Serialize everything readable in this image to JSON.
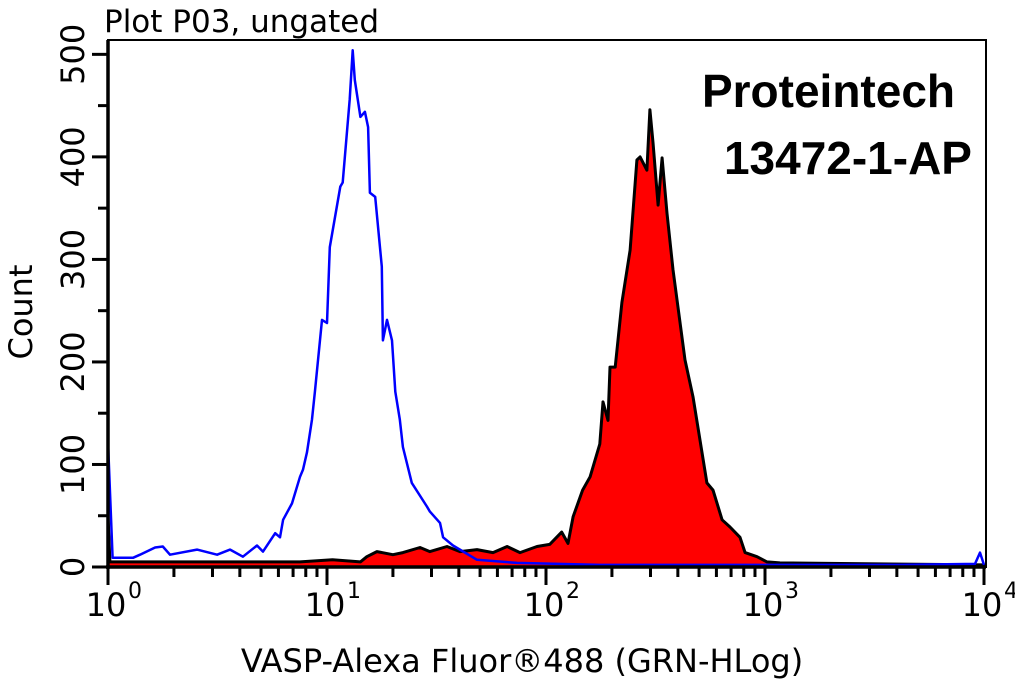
{
  "chart_data": {
    "type": "area",
    "title": "Plot P03, ungated",
    "annotations": [
      "Proteintech",
      "13472-1-AP"
    ],
    "xlabel": "VASP-Alexa Fluor®488 (GRN-HLog)",
    "ylabel": "Count",
    "xscale": "log",
    "xlim": [
      1,
      10000
    ],
    "ylim": [
      0,
      514
    ],
    "xticks": [
      {
        "base": "10",
        "exp": "0",
        "value": 1
      },
      {
        "base": "10",
        "exp": "1",
        "value": 10
      },
      {
        "base": "10",
        "exp": "2",
        "value": 100
      },
      {
        "base": "10",
        "exp": "3",
        "value": 1000
      },
      {
        "base": "10",
        "exp": "4",
        "value": 10000
      }
    ],
    "yticks": [
      0,
      100,
      200,
      300,
      400,
      500
    ],
    "grid": false,
    "series": [
      {
        "style": "filled",
        "color": "#ff0000",
        "stroke": "#000000",
        "points": [
          [
            1.0,
            0
          ],
          [
            1.0,
            51
          ],
          [
            1.02,
            5
          ],
          [
            2.63,
            5
          ],
          [
            7.53,
            5
          ],
          [
            10.6,
            7
          ],
          [
            14.2,
            5
          ],
          [
            15.2,
            10
          ],
          [
            16.9,
            15
          ],
          [
            20.0,
            12
          ],
          [
            22.2,
            14
          ],
          [
            26.6,
            19
          ],
          [
            29.5,
            15
          ],
          [
            35.3,
            20
          ],
          [
            40.5,
            15
          ],
          [
            48.4,
            17
          ],
          [
            57.3,
            14
          ],
          [
            66.4,
            20
          ],
          [
            76.1,
            14
          ],
          [
            91.0,
            20
          ],
          [
            104,
            22
          ],
          [
            118,
            34
          ],
          [
            126,
            23
          ],
          [
            133,
            49
          ],
          [
            147,
            75
          ],
          [
            159,
            88
          ],
          [
            176,
            120
          ],
          [
            182,
            161
          ],
          [
            192,
            143
          ],
          [
            196,
            195
          ],
          [
            207,
            195
          ],
          [
            222,
            258
          ],
          [
            242,
            309
          ],
          [
            260,
            397
          ],
          [
            269,
            400
          ],
          [
            289,
            387
          ],
          [
            298,
            446
          ],
          [
            308,
            414
          ],
          [
            325,
            353
          ],
          [
            339,
            399
          ],
          [
            357,
            345
          ],
          [
            380,
            290
          ],
          [
            431,
            202
          ],
          [
            469,
            166
          ],
          [
            543,
            82
          ],
          [
            579,
            75
          ],
          [
            637,
            46
          ],
          [
            692,
            39
          ],
          [
            769,
            29
          ],
          [
            811,
            14
          ],
          [
            919,
            10
          ],
          [
            1021,
            5
          ],
          [
            1170,
            4
          ],
          [
            10000,
            2
          ]
        ]
      },
      {
        "style": "line",
        "color": "#0000ff",
        "points": [
          [
            1.0,
            0
          ],
          [
            1.0,
            122
          ],
          [
            1.05,
            9
          ],
          [
            1.3,
            9
          ],
          [
            1.4,
            12
          ],
          [
            1.64,
            19
          ],
          [
            1.78,
            20
          ],
          [
            1.92,
            12
          ],
          [
            2.55,
            17
          ],
          [
            3.15,
            12
          ],
          [
            3.61,
            17
          ],
          [
            4.13,
            10
          ],
          [
            4.79,
            21
          ],
          [
            5.1,
            15
          ],
          [
            5.8,
            33
          ],
          [
            6.1,
            29
          ],
          [
            6.3,
            46
          ],
          [
            6.92,
            62
          ],
          [
            7.53,
            88
          ],
          [
            7.77,
            95
          ],
          [
            8.1,
            112
          ],
          [
            8.54,
            144
          ],
          [
            8.81,
            171
          ],
          [
            9.49,
            241
          ],
          [
            10.0,
            238
          ],
          [
            10.3,
            312
          ],
          [
            11.5,
            371
          ],
          [
            11.8,
            375
          ],
          [
            12.7,
            456
          ],
          [
            13.1,
            504
          ],
          [
            13.4,
            475
          ],
          [
            14.2,
            439
          ],
          [
            14.9,
            444
          ],
          [
            15.4,
            429
          ],
          [
            15.7,
            365
          ],
          [
            16.6,
            361
          ],
          [
            17.8,
            293
          ],
          [
            18.0,
            221
          ],
          [
            18.8,
            241
          ],
          [
            19.8,
            221
          ],
          [
            20.5,
            171
          ],
          [
            21.5,
            144
          ],
          [
            22.2,
            117
          ],
          [
            24.4,
            82
          ],
          [
            28.6,
            59
          ],
          [
            29.5,
            54
          ],
          [
            32.8,
            43
          ],
          [
            33.9,
            29
          ],
          [
            37.6,
            21
          ],
          [
            48.4,
            7
          ],
          [
            73.7,
            4
          ],
          [
            176,
            2
          ],
          [
            505,
            2
          ],
          [
            1445,
            2
          ],
          [
            4130,
            2
          ],
          [
            9100,
            3
          ],
          [
            9590,
            14
          ],
          [
            10000,
            2
          ]
        ]
      }
    ]
  }
}
